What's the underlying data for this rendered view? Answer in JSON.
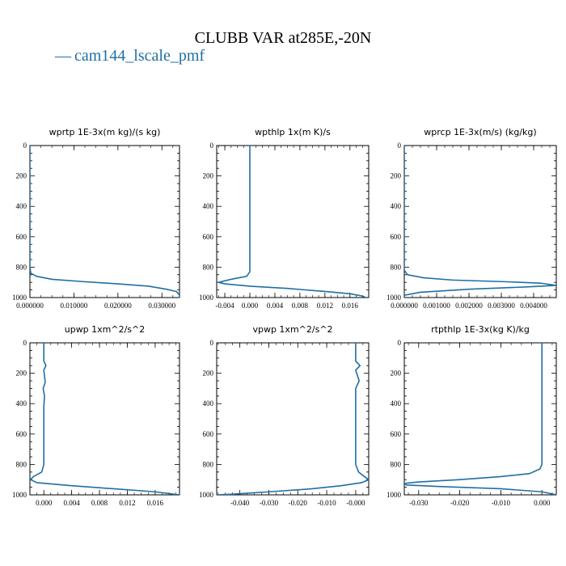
{
  "figure": {
    "title": "CLUBB VAR at285E,-20N",
    "legend_label": "cam144_lscale_pmf",
    "line_color": "#1f6fa3"
  },
  "chart_data": [
    {
      "type": "line",
      "title": "wprtp  1E-3x(m kg)/(s kg)",
      "xlabel": "",
      "ylabel": "",
      "xlim": [
        0.0,
        0.034
      ],
      "ylim": [
        1000,
        0
      ],
      "y_inverted": true,
      "xticks": [
        0.0,
        0.01,
        0.02,
        0.03
      ],
      "xtick_labels": [
        "0.000000",
        "0.010000",
        "0.020000",
        "0.030000"
      ],
      "yticks": [
        0,
        200,
        400,
        600,
        800,
        1000
      ],
      "series": [
        {
          "x": [
            0.0,
            0.0,
            0.0002,
            0.0015,
            0.005,
            0.012,
            0.02,
            0.027,
            0.031,
            0.0333,
            0.034,
            0.034
          ],
          "y": [
            0,
            800,
            840,
            860,
            880,
            895,
            910,
            925,
            945,
            960,
            985,
            1000
          ]
        }
      ]
    },
    {
      "type": "line",
      "title": "wpthlp  1x(m K)/s",
      "xlabel": "",
      "ylabel": "",
      "xlim": [
        -0.0053,
        0.019
      ],
      "ylim": [
        1000,
        0
      ],
      "y_inverted": true,
      "xticks": [
        -0.004,
        0.0,
        0.004,
        0.008,
        0.012,
        0.016
      ],
      "xtick_labels": [
        "-0.004",
        "0.000",
        "0.004",
        "0.008",
        "0.012",
        "0.016"
      ],
      "yticks": [
        0,
        200,
        400,
        600,
        800,
        1000
      ],
      "series": [
        {
          "x": [
            0.0,
            0.0,
            -0.0005,
            -0.003,
            -0.005,
            -0.004,
            0.0,
            0.006,
            0.012,
            0.016,
            0.018,
            0.0185
          ],
          "y": [
            0,
            830,
            860,
            880,
            900,
            910,
            925,
            940,
            960,
            975,
            990,
            1000
          ]
        }
      ]
    },
    {
      "type": "line",
      "title": "wprcp  1E-3x(m/s) (kg/kg)",
      "xlabel": "",
      "ylabel": "",
      "xlim": [
        0.0,
        0.0047
      ],
      "ylim": [
        1000,
        0
      ],
      "y_inverted": true,
      "xticks": [
        0.0,
        0.001,
        0.002,
        0.003,
        0.004
      ],
      "xtick_labels": [
        "0.000000",
        "0.001000",
        "0.002000",
        "0.003000",
        "0.004000"
      ],
      "yticks": [
        0,
        200,
        400,
        600,
        800,
        1000
      ],
      "series": [
        {
          "x": [
            0.0,
            0.0,
            0.0001,
            0.0006,
            0.0015,
            0.003,
            0.0042,
            0.0047,
            0.0038,
            0.002,
            0.0005,
            0.0,
            0.0
          ],
          "y": [
            0,
            820,
            850,
            870,
            885,
            895,
            905,
            920,
            930,
            945,
            965,
            985,
            1000
          ]
        }
      ]
    },
    {
      "type": "line",
      "title": "upwp  1xm^2/s^2",
      "xlabel": "",
      "ylabel": "",
      "xlim": [
        -0.002,
        0.0195
      ],
      "ylim": [
        1000,
        0
      ],
      "y_inverted": true,
      "xticks": [
        0.0,
        0.004,
        0.008,
        0.012,
        0.016
      ],
      "xtick_labels": [
        "0.000",
        "0.004",
        "0.008",
        "0.012",
        "0.016"
      ],
      "yticks": [
        0,
        200,
        400,
        600,
        800,
        1000
      ],
      "series": [
        {
          "x": [
            0.0,
            0.0,
            0.0003,
            0.0,
            0.0002,
            -0.0001,
            0.0001,
            0.0,
            0.0,
            -0.0003,
            -0.0015,
            -0.0019,
            -0.001,
            0.004,
            0.01,
            0.016,
            0.0195
          ],
          "y": [
            0,
            120,
            150,
            180,
            260,
            300,
            350,
            420,
            800,
            850,
            880,
            900,
            920,
            940,
            960,
            980,
            1000
          ]
        }
      ]
    },
    {
      "type": "line",
      "title": "vpwp  1xm^2/s^2",
      "xlabel": "",
      "ylabel": "",
      "xlim": [
        -0.048,
        0.0045
      ],
      "ylim": [
        1000,
        0
      ],
      "y_inverted": true,
      "xticks": [
        -0.04,
        -0.03,
        -0.02,
        -0.01,
        0.0
      ],
      "xtick_labels": [
        "-0.040",
        "-0.030",
        "-0.020",
        "-0.010",
        "-0.000"
      ],
      "yticks": [
        0,
        200,
        400,
        600,
        800,
        1000
      ],
      "series": [
        {
          "x": [
            0.0,
            0.0,
            0.0015,
            0.0,
            0.0012,
            0.0,
            0.0,
            0.001,
            0.003,
            0.0045,
            0.002,
            -0.005,
            -0.015,
            -0.03,
            -0.042,
            -0.048
          ],
          "y": [
            0,
            120,
            150,
            180,
            250,
            300,
            800,
            850,
            880,
            900,
            920,
            940,
            960,
            980,
            995,
            1000
          ]
        }
      ]
    },
    {
      "type": "line",
      "title": "rtpthlp  1E-3x(kg K)/kg",
      "xlabel": "",
      "ylabel": "",
      "xlim": [
        -0.0335,
        0.0035
      ],
      "ylim": [
        1000,
        0
      ],
      "y_inverted": true,
      "xticks": [
        -0.03,
        -0.02,
        -0.01,
        0.0
      ],
      "xtick_labels": [
        "-0.030",
        "-0.020",
        "-0.010",
        "0.000"
      ],
      "yticks": [
        0,
        200,
        400,
        600,
        800,
        1000
      ],
      "series": [
        {
          "x": [
            0.0,
            0.0,
            -0.0005,
            -0.003,
            -0.01,
            -0.02,
            -0.03,
            -0.0335,
            -0.033,
            -0.025,
            -0.01,
            0.0,
            0.0035
          ],
          "y": [
            0,
            800,
            830,
            860,
            880,
            900,
            915,
            925,
            935,
            945,
            960,
            980,
            1000
          ]
        }
      ]
    }
  ]
}
